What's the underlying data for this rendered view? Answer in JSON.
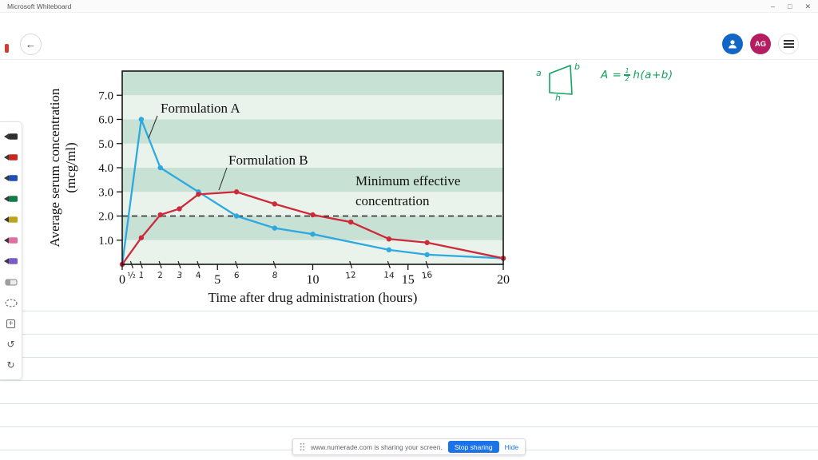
{
  "titlebar": {
    "app_title": "Microsoft Whiteboard",
    "minimize_glyph": "–",
    "maximize_glyph": "□",
    "close_glyph": "✕"
  },
  "toolbar": {
    "back_glyph": "←",
    "user_initials": "AG",
    "avatar_colors": {
      "account": "#1266c6",
      "user": "#b41d62"
    }
  },
  "pen_rail": {
    "tools": [
      {
        "type": "pen",
        "name": "black-pen",
        "color": "#2f2f2f"
      },
      {
        "type": "pen",
        "name": "red-pen",
        "color": "#c8281e"
      },
      {
        "type": "pen",
        "name": "blue-pen",
        "color": "#1f4fb4"
      },
      {
        "type": "pen",
        "name": "green-pen",
        "color": "#147a46"
      },
      {
        "type": "pen",
        "name": "yellow-pen",
        "color": "#bfa31b"
      },
      {
        "type": "pen",
        "name": "pink-pen",
        "color": "#dd6fa4"
      },
      {
        "type": "pen",
        "name": "galaxy-pen",
        "color": "#7b5bc7"
      },
      {
        "type": "eraser",
        "name": "eraser"
      },
      {
        "type": "lasso",
        "name": "lasso-select"
      },
      {
        "type": "insert",
        "name": "insert-object",
        "glyph": "+"
      },
      {
        "type": "glyph",
        "name": "undo",
        "glyph": "↺"
      },
      {
        "type": "glyph",
        "name": "redo",
        "glyph": "↻"
      }
    ]
  },
  "annotation": {
    "ink_color": "#11a35f",
    "trapezoid_labels": {
      "left": "a",
      "right": "b",
      "bottom": "h"
    },
    "formula": {
      "lead": "A =",
      "numerator": "1",
      "denominator": "2",
      "tail": "h(a+b)"
    }
  },
  "share_toast": {
    "text": "www.numerade.com is sharing your screen.",
    "stop_button": "Stop sharing",
    "hide_link": "Hide"
  },
  "chart_data": {
    "type": "line",
    "title": "",
    "xlabel": "Time after drug administration (hours)",
    "ylabel": "Average serum concentration (mcg/ml)",
    "ylabel_lines": [
      "Average serum concentration",
      "(mcg/ml)"
    ],
    "xlim": [
      0,
      20
    ],
    "ylim": [
      0,
      8
    ],
    "x_ticks": [
      0,
      5,
      10,
      15,
      20
    ],
    "y_ticks": [
      1,
      2,
      3,
      4,
      5,
      6,
      7
    ],
    "y_tick_labels": [
      "1.0",
      "2.0",
      "3.0",
      "4.0",
      "5.0",
      "6.0",
      "7.0"
    ],
    "handwritten_ticks": [
      {
        "t": 0.5,
        "label": "½"
      },
      {
        "t": 1,
        "label": "1"
      },
      {
        "t": 2,
        "label": "2"
      },
      {
        "t": 3,
        "label": "3"
      },
      {
        "t": 4,
        "label": "4"
      },
      {
        "t": 6,
        "label": "6"
      },
      {
        "t": 8,
        "label": "8"
      },
      {
        "t": 12,
        "label": "12"
      },
      {
        "t": 14,
        "label": "14"
      },
      {
        "t": 16,
        "label": "16"
      }
    ],
    "threshold": {
      "value": 2.0,
      "label_lines": [
        "Minimum effective",
        "concentration"
      ]
    },
    "grid": "striped-bands",
    "stripe_colors": [
      "#e9f3ec",
      "#c7e1d4"
    ],
    "series": [
      {
        "name": "Formulation A",
        "color": "#2ea9e0",
        "points": [
          [
            0,
            0
          ],
          [
            1,
            6.0
          ],
          [
            2,
            4.0
          ],
          [
            4,
            3.0
          ],
          [
            6,
            2.0
          ],
          [
            8,
            1.5
          ],
          [
            10,
            1.25
          ],
          [
            14,
            0.6
          ],
          [
            16,
            0.4
          ],
          [
            20,
            0.25
          ]
        ]
      },
      {
        "name": "Formulation B",
        "color": "#cd2a3a",
        "points": [
          [
            0,
            0
          ],
          [
            1,
            1.1
          ],
          [
            2,
            2.05
          ],
          [
            3,
            2.3
          ],
          [
            4,
            2.9
          ],
          [
            6,
            3.0
          ],
          [
            8,
            2.5
          ],
          [
            10,
            2.05
          ],
          [
            12,
            1.75
          ],
          [
            14,
            1.05
          ],
          [
            16,
            0.9
          ],
          [
            20,
            0.25
          ]
        ]
      }
    ]
  }
}
